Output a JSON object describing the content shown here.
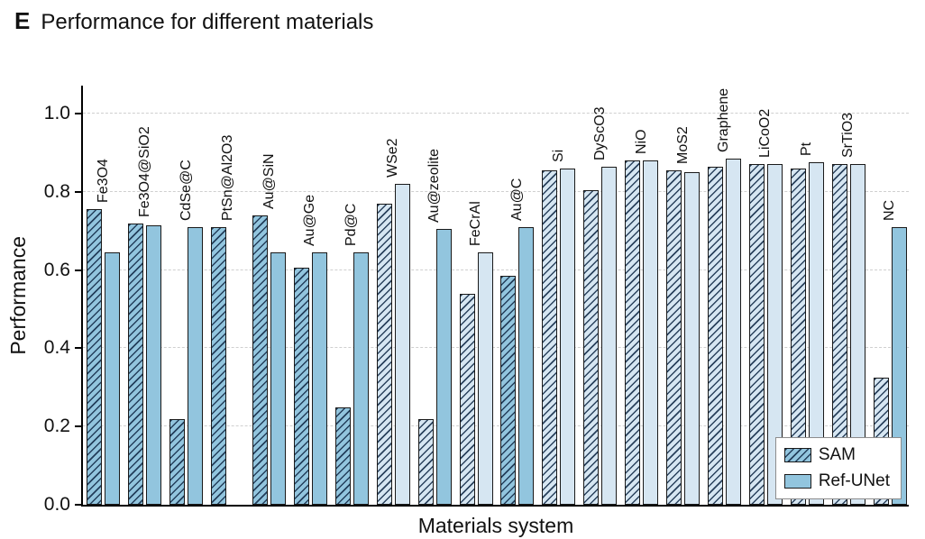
{
  "panel_label": "E",
  "title": "Performance for different materials",
  "chart_data": {
    "type": "bar",
    "title": "Performance for different materials",
    "xlabel": "Materials system",
    "ylabel": "Performance",
    "ylim": [
      0.0,
      1.076
    ],
    "yticks": [
      0.0,
      0.2,
      0.4,
      0.6,
      0.8,
      1.0
    ],
    "grid": "horizontal dashed",
    "legend_position": "lower right",
    "colors": {
      "medium": "#92c5de",
      "light": "#d6e6f2",
      "hatch": "#17304d",
      "bar_edge": "#1a1a1a",
      "gridline": "#cfcfcf"
    },
    "categories": [
      "Fe3O4",
      "Fe3O4@SiO2",
      "CdSe@C",
      "PtSn@Al2O3",
      "Au@SiN",
      "Au@Ge",
      "Pd@C",
      "WSe2",
      "Au@zeolite",
      "FeCrAl",
      "Au@C",
      "Si",
      "DyScO3",
      "NiO",
      "MoS2",
      "Graphene",
      "LiCoO2",
      "Pt",
      "SrTiO3",
      "NC"
    ],
    "series": [
      {
        "name": "SAM",
        "hatch": true,
        "values": [
          0.755,
          0.72,
          0.22,
          0.71,
          0.74,
          0.605,
          0.25,
          0.77,
          0.22,
          0.54,
          0.585,
          0.855,
          0.805,
          0.88,
          0.855,
          0.865,
          0.87,
          0.86,
          0.87,
          0.325
        ],
        "tones": [
          "medium",
          "medium",
          "medium",
          "medium",
          "medium",
          "medium",
          "medium",
          "light",
          "light",
          "light",
          "medium",
          "light",
          "light",
          "light",
          "light",
          "light",
          "light",
          "light",
          "light",
          "light"
        ]
      },
      {
        "name": "Ref-UNet",
        "hatch": false,
        "values": [
          0.645,
          0.715,
          0.71,
          null,
          0.645,
          0.645,
          0.645,
          0.82,
          0.705,
          0.645,
          0.71,
          0.86,
          0.865,
          0.88,
          0.85,
          0.885,
          0.87,
          0.875,
          0.87,
          0.71
        ],
        "tones": [
          "medium",
          "medium",
          "medium",
          null,
          "medium",
          "medium",
          "medium",
          "light",
          "medium",
          "light",
          "medium",
          "light",
          "light",
          "light",
          "light",
          "light",
          "light",
          "light",
          "light",
          "medium"
        ]
      }
    ]
  }
}
